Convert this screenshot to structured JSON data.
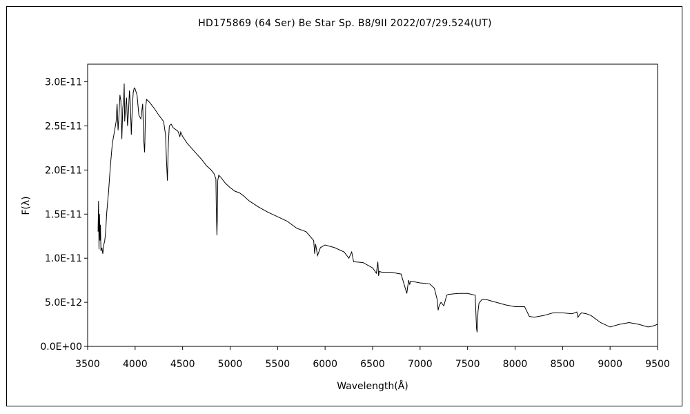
{
  "chart_data": {
    "type": "line",
    "title": "HD175869 (64 Ser)    Be Star    Sp. B8/9II    2022/07/29.524(UT)",
    "xlabel": "Wavelength(Å)",
    "ylabel": "F(λ)",
    "xlim": [
      3500,
      9500
    ],
    "ylim": [
      0,
      3.2e-11
    ],
    "xticks": [
      3500,
      4000,
      4500,
      5000,
      5500,
      6000,
      6500,
      7000,
      7500,
      8000,
      8500,
      9000,
      9500
    ],
    "xtick_labels": [
      "3500",
      "4000",
      "4500",
      "5000",
      "5500",
      "6000",
      "6500",
      "7000",
      "7500",
      "8000",
      "8500",
      "9000",
      "9500"
    ],
    "yticks": [
      0,
      5e-12,
      1e-11,
      1.5e-11,
      2e-11,
      2.5e-11,
      3e-11
    ],
    "ytick_labels": [
      "0.0E+00",
      "5.0E-12",
      "1.0E-11",
      "1.5E-11",
      "2.0E-11",
      "2.5E-11",
      "3.0E-11"
    ],
    "grid": false,
    "line_color": "#000000",
    "series": [
      {
        "x": [
          3610,
          3615,
          3620,
          3625,
          3630,
          3635,
          3640,
          3650,
          3660,
          3670,
          3680,
          3690,
          3700,
          3720,
          3740,
          3760,
          3780,
          3800,
          3810,
          3820,
          3830,
          3840,
          3850,
          3860,
          3870,
          3880,
          3885,
          3890,
          3900,
          3910,
          3920,
          3930,
          3940,
          3950,
          3960,
          3970,
          3980,
          3990,
          4000,
          4020,
          4040,
          4060,
          4080,
          4090,
          4100,
          4102,
          4105,
          4110,
          4120,
          4150,
          4200,
          4250,
          4300,
          4320,
          4330,
          4340,
          4345,
          4350,
          4360,
          4380,
          4400,
          4450,
          4471,
          4480,
          4500,
          4550,
          4600,
          4650,
          4700,
          4750,
          4800,
          4830,
          4850,
          4855,
          4861,
          4866,
          4870,
          4880,
          4900,
          4950,
          5000,
          5050,
          5100,
          5150,
          5200,
          5300,
          5400,
          5500,
          5600,
          5700,
          5800,
          5880,
          5890,
          5900,
          5920,
          5950,
          6000,
          6100,
          6200,
          6250,
          6280,
          6300,
          6400,
          6450,
          6500,
          6540,
          6555,
          6563,
          6570,
          6600,
          6700,
          6800,
          6860,
          6870,
          6880,
          6890,
          6900,
          6950,
          7000,
          7100,
          7150,
          7180,
          7190,
          7200,
          7220,
          7250,
          7280,
          7300,
          7400,
          7500,
          7580,
          7594,
          7600,
          7610,
          7620,
          7650,
          7700,
          7800,
          7900,
          8000,
          8100,
          8150,
          8200,
          8300,
          8400,
          8500,
          8600,
          8650,
          8662,
          8680,
          8700,
          8750,
          8800,
          8900,
          9000,
          9100,
          9200,
          9300,
          9400,
          9450,
          9500
        ],
        "y": [
          1.3e-11,
          1.65e-11,
          1.1e-11,
          1.5e-11,
          1.2e-11,
          1.38e-11,
          1.08e-11,
          1.12e-11,
          1.05e-11,
          1.15e-11,
          1.2e-11,
          1.3e-11,
          1.5e-11,
          1.75e-11,
          2.05e-11,
          2.3e-11,
          2.42e-11,
          2.55e-11,
          2.75e-11,
          2.45e-11,
          2.62e-11,
          2.85e-11,
          2.78e-11,
          2.35e-11,
          2.7e-11,
          2.8e-11,
          2.98e-11,
          2.55e-11,
          2.72e-11,
          2.82e-11,
          2.5e-11,
          2.65e-11,
          2.9e-11,
          2.75e-11,
          2.4e-11,
          2.7e-11,
          2.88e-11,
          2.93e-11,
          2.92e-11,
          2.85e-11,
          2.62e-11,
          2.58e-11,
          2.75e-11,
          2.35e-11,
          2.2e-11,
          2.3e-11,
          2.45e-11,
          2.7e-11,
          2.8e-11,
          2.77e-11,
          2.7e-11,
          2.62e-11,
          2.55e-11,
          2.4e-11,
          2.1e-11,
          1.88e-11,
          2.1e-11,
          2.3e-11,
          2.5e-11,
          2.52e-11,
          2.48e-11,
          2.44e-11,
          2.38e-11,
          2.43e-11,
          2.38e-11,
          2.3e-11,
          2.24e-11,
          2.18e-11,
          2.12e-11,
          2.05e-11,
          2e-11,
          1.96e-11,
          1.9e-11,
          1.55e-11,
          1.26e-11,
          1.5e-11,
          1.88e-11,
          1.94e-11,
          1.92e-11,
          1.85e-11,
          1.8e-11,
          1.76e-11,
          1.74e-11,
          1.7e-11,
          1.65e-11,
          1.58e-11,
          1.52e-11,
          1.47e-11,
          1.42e-11,
          1.34e-11,
          1.3e-11,
          1.2e-11,
          1.05e-11,
          1.16e-11,
          1.03e-11,
          1.12e-11,
          1.15e-11,
          1.12e-11,
          1.07e-11,
          1e-11,
          1.07e-11,
          9.6e-12,
          9.5e-12,
          9.2e-12,
          8.9e-12,
          8.3e-12,
          9.6e-12,
          8e-12,
          8.5e-12,
          8.4e-12,
          8.4e-12,
          8.2e-12,
          6e-12,
          6.8e-12,
          7.5e-12,
          7e-12,
          7.4e-12,
          7.3e-12,
          7.2e-12,
          7.1e-12,
          6.6e-12,
          5.3e-12,
          4.1e-12,
          4.6e-12,
          5e-12,
          4.6e-12,
          5.8e-12,
          5.9e-12,
          6e-12,
          6e-12,
          5.8e-12,
          2.1e-12,
          1.6e-12,
          4e-12,
          4.9e-12,
          5.3e-12,
          5.3e-12,
          5e-12,
          4.7e-12,
          4.5e-12,
          4.5e-12,
          3.4e-12,
          3.3e-12,
          3.5e-12,
          3.8e-12,
          3.8e-12,
          3.7e-12,
          3.9e-12,
          3.3e-12,
          3.6e-12,
          3.8e-12,
          3.7e-12,
          3.5e-12,
          2.7e-12,
          2.2e-12,
          2.5e-12,
          2.7e-12,
          2.5e-12,
          2.2e-12,
          2.3e-12,
          2.5e-12
        ]
      }
    ]
  }
}
